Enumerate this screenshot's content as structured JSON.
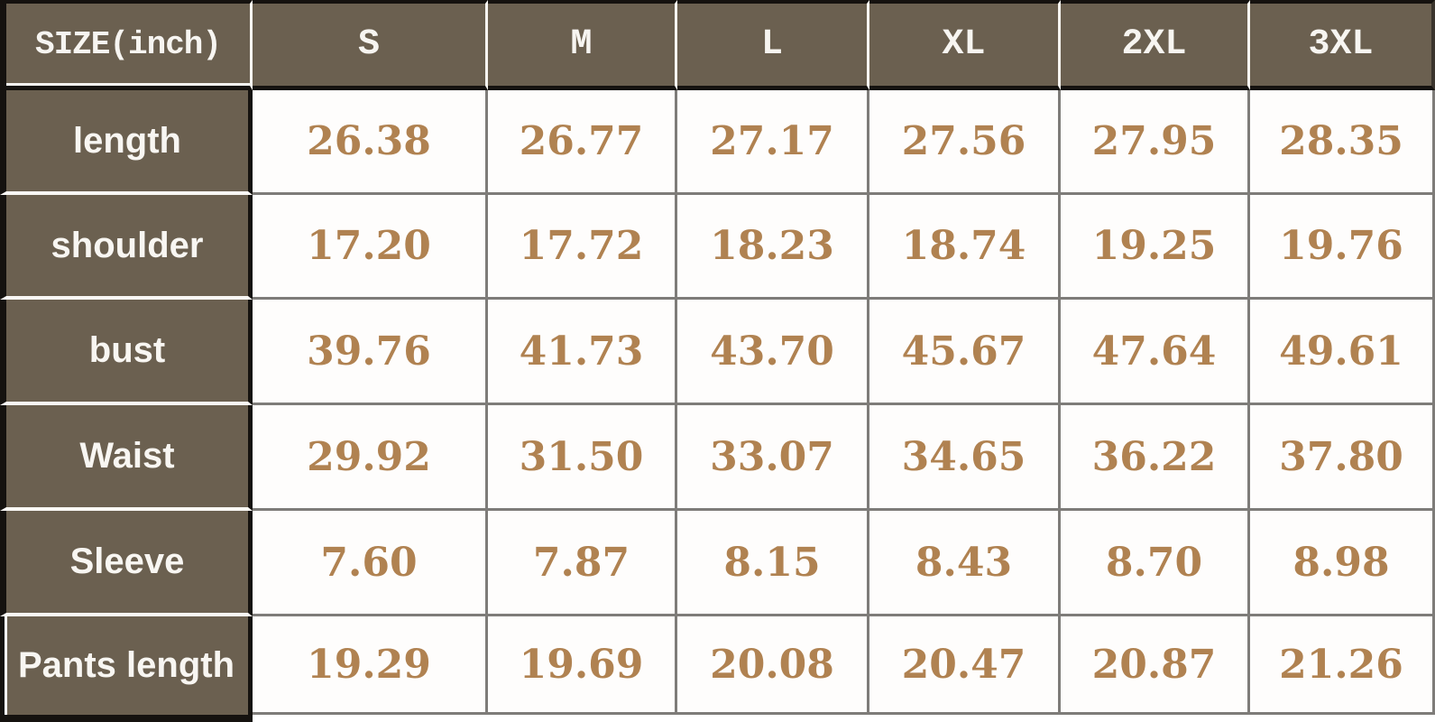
{
  "chart_data": {
    "type": "table",
    "corner_header": "SIZE(inch)",
    "columns": [
      "S",
      "M",
      "L",
      "XL",
      "2XL",
      "3XL"
    ],
    "rows": [
      {
        "label": "length",
        "values": [
          "26.38",
          "26.77",
          "27.17",
          "27.56",
          "27.95",
          "28.35"
        ]
      },
      {
        "label": "shoulder",
        "values": [
          "17.20",
          "17.72",
          "18.23",
          "18.74",
          "19.25",
          "19.76"
        ]
      },
      {
        "label": "bust",
        "values": [
          "39.76",
          "41.73",
          "43.70",
          "45.67",
          "47.64",
          "49.61"
        ]
      },
      {
        "label": "Waist",
        "values": [
          "29.92",
          "31.50",
          "33.07",
          "34.65",
          "36.22",
          "37.80"
        ]
      },
      {
        "label": "Sleeve",
        "values": [
          "7.60",
          "7.87",
          "8.15",
          "8.43",
          "8.70",
          "8.98"
        ]
      },
      {
        "label": "Pants length",
        "values": [
          "19.29",
          "19.69",
          "20.08",
          "20.47",
          "20.87",
          "21.26"
        ]
      }
    ],
    "layout_hints": {
      "grid": "on",
      "header_position": "top-row-and-left-column"
    }
  },
  "colors": {
    "header_bg": "#6b6050",
    "header_text": "#f7f5f1",
    "label_text": "#f8f6f2",
    "value_text": "#b08251",
    "cell_bg": "#fefdfc",
    "grid_gray": "#7e7c79",
    "border_black": "#15120f",
    "separator_white": "#f7f5f1"
  }
}
